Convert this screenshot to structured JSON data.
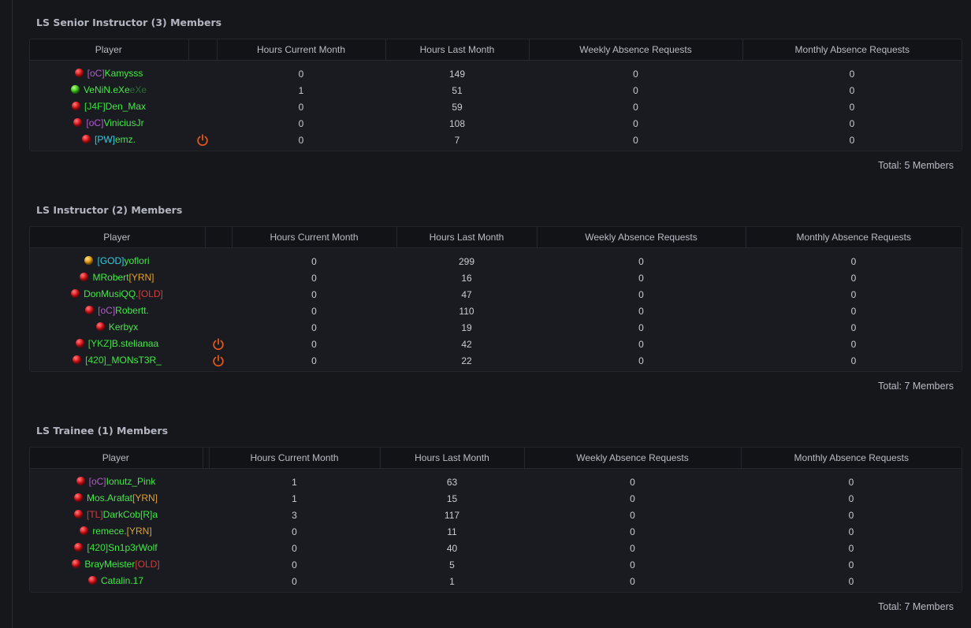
{
  "colors": {
    "background": "#16171b",
    "header_bg": "#121317",
    "row_bg": "#1a1b20",
    "status_online": "#3fc21b",
    "status_offline": "#d6141a",
    "status_away": "#e39a10",
    "power_icon": "#e0571a"
  },
  "columns": {
    "player": "Player",
    "hours_current": "Hours Current Month",
    "hours_last": "Hours Last Month",
    "weekly_absence": "Weekly Absence Requests",
    "monthly_absence": "Monthly Absence Requests"
  },
  "sections": [
    {
      "title": "LS Senior Instructor (3) Members",
      "total": "Total: 5 Members",
      "members": [
        {
          "status": "offline",
          "tag": "[oC]",
          "tag_color": "purple",
          "name": "Kamysss",
          "suffix": "",
          "suffix_color": "",
          "name_color": "green",
          "power_icon": false,
          "hours_current": "0",
          "hours_last": "149",
          "weekly": "0",
          "monthly": "0"
        },
        {
          "status": "online",
          "tag": "",
          "tag_color": "",
          "name": "VeNiN.eXe",
          "suffix": "eXe",
          "suffix_color": "dim",
          "name_color": "green",
          "power_icon": false,
          "hours_current": "1",
          "hours_last": "51",
          "weekly": "0",
          "monthly": "0"
        },
        {
          "status": "offline",
          "tag": "[J4F]",
          "tag_color": "green",
          "name": "Den_Max",
          "suffix": "",
          "suffix_color": "",
          "name_color": "green",
          "power_icon": false,
          "hours_current": "0",
          "hours_last": "59",
          "weekly": "0",
          "monthly": "0"
        },
        {
          "status": "offline",
          "tag": "[oC]",
          "tag_color": "purple",
          "name": "ViniciusJr",
          "suffix": "",
          "suffix_color": "",
          "name_color": "green",
          "power_icon": false,
          "hours_current": "0",
          "hours_last": "108",
          "weekly": "0",
          "monthly": "0"
        },
        {
          "status": "offline",
          "tag": "[PW]",
          "tag_color": "cyan",
          "name": "emz.",
          "suffix": "",
          "suffix_color": "",
          "name_color": "green",
          "power_icon": true,
          "hours_current": "0",
          "hours_last": "7",
          "weekly": "0",
          "monthly": "0"
        }
      ]
    },
    {
      "title": "LS Instructor (2) Members",
      "total": "Total: 7 Members",
      "members": [
        {
          "status": "away",
          "tag": "[GOD]",
          "tag_color": "cyan",
          "name": "yoflori",
          "suffix": "",
          "suffix_color": "",
          "name_color": "green",
          "power_icon": false,
          "hours_current": "0",
          "hours_last": "299",
          "weekly": "0",
          "monthly": "0"
        },
        {
          "status": "offline",
          "tag": "",
          "tag_color": "",
          "name": "MRobert",
          "suffix": "[YRN]",
          "suffix_color": "orange",
          "name_color": "green",
          "power_icon": false,
          "hours_current": "0",
          "hours_last": "16",
          "weekly": "0",
          "monthly": "0"
        },
        {
          "status": "offline",
          "tag": "",
          "tag_color": "",
          "name": "DonMusiQQ.",
          "suffix": "[OLD]",
          "suffix_color": "red",
          "name_color": "green",
          "power_icon": false,
          "hours_current": "0",
          "hours_last": "47",
          "weekly": "0",
          "monthly": "0"
        },
        {
          "status": "offline",
          "tag": "[oC]",
          "tag_color": "purple",
          "name": "Robertt.",
          "suffix": "",
          "suffix_color": "",
          "name_color": "green",
          "power_icon": false,
          "hours_current": "0",
          "hours_last": "110",
          "weekly": "0",
          "monthly": "0"
        },
        {
          "status": "offline",
          "tag": "",
          "tag_color": "",
          "name": "Kerbyx",
          "suffix": "",
          "suffix_color": "",
          "name_color": "green",
          "power_icon": false,
          "hours_current": "0",
          "hours_last": "19",
          "weekly": "0",
          "monthly": "0"
        },
        {
          "status": "offline",
          "tag": "[YKZ]",
          "tag_color": "green",
          "name": "B.stelianaa",
          "suffix": "",
          "suffix_color": "",
          "name_color": "green",
          "power_icon": true,
          "hours_current": "0",
          "hours_last": "42",
          "weekly": "0",
          "monthly": "0"
        },
        {
          "status": "offline",
          "tag": "[420]",
          "tag_color": "green",
          "name": "_MONsT3R_",
          "suffix": "",
          "suffix_color": "",
          "name_color": "green",
          "power_icon": true,
          "hours_current": "0",
          "hours_last": "22",
          "weekly": "0",
          "monthly": "0"
        }
      ]
    },
    {
      "title": "LS Trainee (1) Members",
      "total": "Total: 7 Members",
      "members": [
        {
          "status": "offline",
          "tag": "[oC]",
          "tag_color": "purple",
          "name": "Ionutz_Pink",
          "suffix": "",
          "suffix_color": "",
          "name_color": "green",
          "power_icon": false,
          "hours_current": "1",
          "hours_last": "63",
          "weekly": "0",
          "monthly": "0"
        },
        {
          "status": "offline",
          "tag": "",
          "tag_color": "",
          "name": "Mos.Arafat",
          "suffix": "[YRN]",
          "suffix_color": "orange",
          "name_color": "green",
          "power_icon": false,
          "hours_current": "1",
          "hours_last": "15",
          "weekly": "0",
          "monthly": "0"
        },
        {
          "status": "offline",
          "tag": "[TL]",
          "tag_color": "red",
          "name": "DarkCob[R]a",
          "suffix": "",
          "suffix_color": "",
          "name_color": "green",
          "power_icon": false,
          "hours_current": "3",
          "hours_last": "117",
          "weekly": "0",
          "monthly": "0"
        },
        {
          "status": "offline",
          "tag": "",
          "tag_color": "",
          "name": "remece.",
          "suffix": "[YRN]",
          "suffix_color": "orange",
          "name_color": "green",
          "power_icon": false,
          "hours_current": "0",
          "hours_last": "11",
          "weekly": "0",
          "monthly": "0"
        },
        {
          "status": "offline",
          "tag": "[420]",
          "tag_color": "green",
          "name": "Sn1p3rWolf",
          "suffix": "",
          "suffix_color": "",
          "name_color": "green",
          "power_icon": false,
          "hours_current": "0",
          "hours_last": "40",
          "weekly": "0",
          "monthly": "0"
        },
        {
          "status": "offline",
          "tag": "",
          "tag_color": "",
          "name": "BrayMeister",
          "suffix": "[OLD]",
          "suffix_color": "red",
          "name_color": "green",
          "power_icon": false,
          "hours_current": "0",
          "hours_last": "5",
          "weekly": "0",
          "monthly": "0"
        },
        {
          "status": "offline",
          "tag": "",
          "tag_color": "",
          "name": "Catalin.17",
          "suffix": "",
          "suffix_color": "",
          "name_color": "green",
          "power_icon": false,
          "hours_current": "0",
          "hours_last": "1",
          "weekly": "0",
          "monthly": "0"
        }
      ]
    }
  ]
}
